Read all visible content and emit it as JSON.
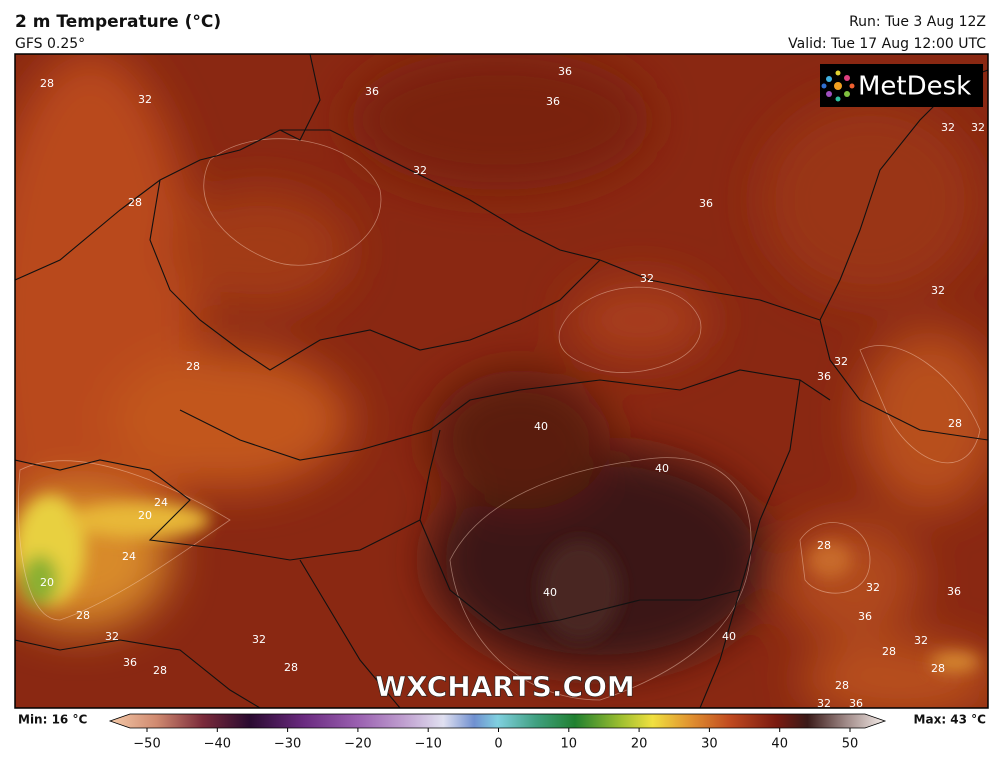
{
  "header": {
    "title": "2 m Temperature (°C)",
    "model": "GFS 0.25°",
    "run": "Run: Tue 3 Aug 12Z",
    "valid": "Valid: Tue 17 Aug 12:00 UTC"
  },
  "logo": "MetDesk",
  "watermark": "WXCHARTS.COM",
  "map": {
    "contour_labels": [
      28,
      32,
      36,
      36,
      36,
      32,
      32,
      32,
      28,
      36,
      32,
      32,
      28,
      32,
      36,
      40,
      28,
      40,
      24,
      20,
      24,
      20,
      28,
      32,
      36,
      40,
      28,
      36,
      32,
      32,
      40,
      32,
      36,
      28,
      28,
      28,
      28,
      28,
      32,
      36
    ]
  },
  "colorbar": {
    "min_label": "Min: 16 °C",
    "max_label": "Max: 43 °C",
    "range": [
      -50,
      50
    ],
    "ticks": [
      {
        "value": -50,
        "label": "−50"
      },
      {
        "value": -40,
        "label": "−40"
      },
      {
        "value": -30,
        "label": "−30"
      },
      {
        "value": -20,
        "label": "−20"
      },
      {
        "value": -10,
        "label": "−10"
      },
      0,
      10,
      20,
      30,
      40,
      50
    ]
  }
}
